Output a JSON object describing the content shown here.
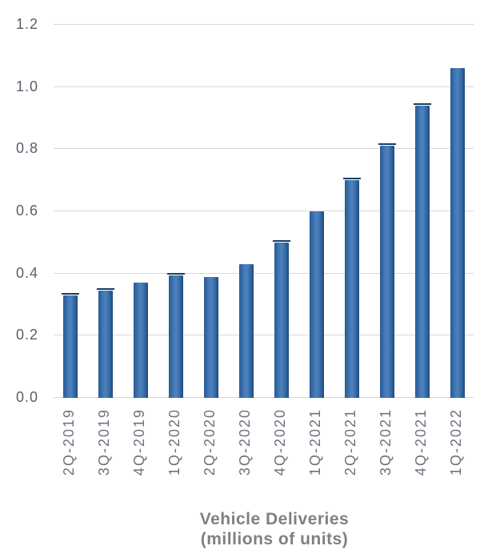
{
  "chart_data": {
    "type": "bar",
    "title": "Vehicle Deliveries",
    "subtitle": "(millions of units)",
    "categories": [
      "2Q-2019",
      "3Q-2019",
      "4Q-2019",
      "1Q-2020",
      "2Q-2020",
      "3Q-2020",
      "4Q-2020",
      "1Q-2021",
      "2Q-2021",
      "3Q-2021",
      "4Q-2021",
      "1Q-2022"
    ],
    "values": [
      0.33,
      0.345,
      0.37,
      0.395,
      0.39,
      0.43,
      0.5,
      0.6,
      0.7,
      0.81,
      0.94,
      1.06
    ],
    "error_whiskers": [
      true,
      true,
      false,
      true,
      false,
      false,
      true,
      false,
      true,
      true,
      true,
      false
    ],
    "xlabel": "",
    "ylabel": "",
    "ylim": [
      0,
      1.2
    ],
    "ytick_labels": [
      "0.0",
      "0.2",
      "0.4",
      "0.6",
      "0.8",
      "1.0",
      "1.2"
    ],
    "ytick_step": 0.2,
    "grid": true,
    "legend": "none",
    "colors": {
      "bar_center": "#4a7fbd",
      "bar_edge": "#1e4a7a",
      "bar_cap": "#173d66",
      "gridline": "#d9d9d9",
      "y_tick_text": "#575e6a",
      "x_tick_text": "#6d737e",
      "title_text": "#808080",
      "background": "#ffffff"
    }
  }
}
